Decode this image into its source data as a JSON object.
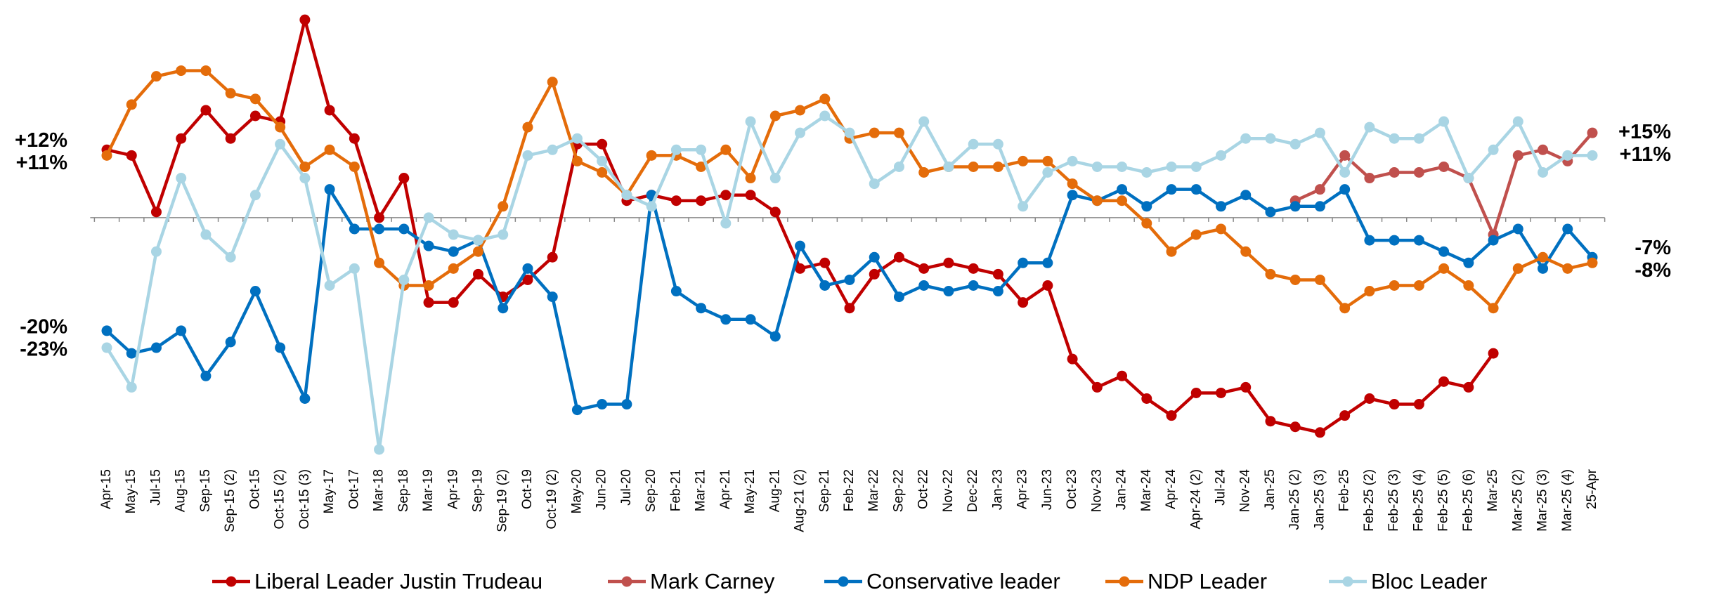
{
  "chart_data": {
    "type": "line",
    "categories": [
      "Apr-15",
      "May-15",
      "Jul-15",
      "Aug-15",
      "Sep-15",
      "Sep-15 (2)",
      "Oct-15",
      "Oct-15 (2)",
      "Oct-15 (3)",
      "May-17",
      "Oct-17",
      "Mar-18",
      "Sep-18",
      "Mar-19",
      "Apr-19",
      "Sep-19",
      "Sep-19 (2)",
      "Oct-19",
      "Oct-19 (2)",
      "May-20",
      "Jun-20",
      "Jul-20",
      "Sep-20",
      "Feb-21",
      "Mar-21",
      "Apr-21",
      "May-21",
      "Aug-21",
      "Aug-21 (2)",
      "Sep-21",
      "Feb-22",
      "Mar-22",
      "Sep-22",
      "Oct-22",
      "Nov-22",
      "Dec-22",
      "Jan-23",
      "Apr-23",
      "Jun-23",
      "Oct-23",
      "Nov-23",
      "Jan-24",
      "Mar-24",
      "Apr-24",
      "Apr-24 (2)",
      "Jul-24",
      "Nov-24",
      "Jan-25",
      "Jan-25 (2)",
      "Jan-25 (3)",
      "Feb-25",
      "Feb-25 (2)",
      "Feb-25 (3)",
      "Feb-25 (4)",
      "Feb-25 (5)",
      "Feb-25 (6)",
      "Mar-25",
      "Mar-25 (2)",
      "Mar-25 (3)",
      "Mar-25 (4)",
      "25-Apr"
    ],
    "ylim": [
      -42,
      38
    ],
    "series": [
      {
        "name": "Liberal Leader Justin Trudeau",
        "color": "#c00000",
        "values": [
          12,
          11,
          1,
          14,
          19,
          14,
          18,
          17,
          35,
          19,
          14,
          0,
          7,
          -15,
          -15,
          -10,
          -14,
          -11,
          -7,
          13,
          13,
          3,
          4,
          3,
          3,
          4,
          4,
          1,
          -9,
          -8,
          -16,
          -10,
          -7,
          -9,
          -8,
          -9,
          -10,
          -15,
          -12,
          -25,
          -30,
          -28,
          -32,
          -35,
          -31,
          -31,
          -30,
          -36,
          -37,
          -38,
          -35,
          -32,
          -33,
          -33,
          -29,
          -30,
          -24,
          null,
          null,
          null,
          null
        ],
        "value_labels": [
          "+12%",
          null,
          null,
          null,
          null,
          null,
          null,
          null,
          null,
          null,
          null,
          null,
          null,
          null,
          null,
          null,
          null,
          null,
          null,
          null,
          null,
          null,
          null,
          null,
          null,
          null,
          null,
          null,
          null,
          null,
          null,
          null,
          null,
          null,
          null,
          null,
          null,
          null,
          null,
          null,
          null,
          null,
          null,
          null,
          null,
          null,
          null,
          null,
          null,
          null,
          null,
          null,
          null,
          null,
          null,
          null,
          null,
          null,
          null,
          null,
          null
        ]
      },
      {
        "name": "Mark Carney",
        "color": "#c0504d",
        "values": [
          null,
          null,
          null,
          null,
          null,
          null,
          null,
          null,
          null,
          null,
          null,
          null,
          null,
          null,
          null,
          null,
          null,
          null,
          null,
          null,
          null,
          null,
          null,
          null,
          null,
          null,
          null,
          null,
          null,
          null,
          null,
          null,
          null,
          null,
          null,
          null,
          null,
          null,
          null,
          null,
          null,
          null,
          null,
          null,
          null,
          null,
          null,
          null,
          3,
          5,
          11,
          7,
          8,
          8,
          9,
          7,
          -3,
          11,
          12,
          10,
          15
        ],
        "value_labels": [
          null,
          null,
          null,
          null,
          null,
          null,
          null,
          null,
          null,
          null,
          null,
          null,
          null,
          null,
          null,
          null,
          null,
          null,
          null,
          null,
          null,
          null,
          null,
          null,
          null,
          null,
          null,
          null,
          null,
          null,
          null,
          null,
          null,
          null,
          null,
          null,
          null,
          null,
          null,
          null,
          null,
          null,
          null,
          null,
          null,
          null,
          null,
          null,
          null,
          null,
          null,
          null,
          null,
          null,
          null,
          null,
          null,
          null,
          null,
          null,
          "+15%"
        ]
      },
      {
        "name": "Conservative leader",
        "color": "#0070c0",
        "values": [
          -20,
          -24,
          -23,
          -20,
          -28,
          -22,
          -13,
          -23,
          -32,
          5,
          -2,
          -2,
          -2,
          -5,
          -6,
          -4,
          -16,
          -9,
          -14,
          -34,
          -33,
          -33,
          4,
          -13,
          -16,
          -18,
          -18,
          -21,
          -5,
          -12,
          -11,
          -7,
          -14,
          -12,
          -13,
          -12,
          -13,
          -8,
          -8,
          4,
          3,
          5,
          2,
          5,
          5,
          2,
          4,
          1,
          2,
          2,
          5,
          -4,
          -4,
          -4,
          -6,
          -8,
          -4,
          -2,
          -9,
          -2,
          -7
        ],
        "value_labels": [
          "-20%",
          null,
          null,
          null,
          null,
          null,
          null,
          null,
          null,
          null,
          null,
          null,
          null,
          null,
          null,
          null,
          null,
          null,
          null,
          null,
          null,
          null,
          null,
          null,
          null,
          null,
          null,
          null,
          null,
          null,
          null,
          null,
          null,
          null,
          null,
          null,
          null,
          null,
          null,
          null,
          null,
          null,
          null,
          null,
          null,
          null,
          null,
          null,
          null,
          null,
          null,
          null,
          null,
          null,
          null,
          null,
          null,
          null,
          null,
          null,
          "-7%"
        ]
      },
      {
        "name": "NDP Leader",
        "color": "#e46c0a",
        "values": [
          11,
          20,
          25,
          26,
          26,
          22,
          21,
          16,
          9,
          12,
          9,
          -8,
          -12,
          -12,
          -9,
          -6,
          2,
          16,
          24,
          10,
          8,
          4,
          11,
          11,
          9,
          12,
          7,
          18,
          19,
          21,
          14,
          15,
          15,
          8,
          9,
          9,
          9,
          10,
          10,
          6,
          3,
          3,
          -1,
          -6,
          -3,
          -2,
          -6,
          -10,
          -11,
          -11,
          -16,
          -13,
          -12,
          -12,
          -9,
          -12,
          -16,
          -9,
          -7,
          -9,
          -8
        ],
        "value_labels": [
          "+11%",
          null,
          null,
          null,
          null,
          null,
          null,
          null,
          null,
          null,
          null,
          null,
          null,
          null,
          null,
          null,
          null,
          null,
          null,
          null,
          null,
          null,
          null,
          null,
          null,
          null,
          null,
          null,
          null,
          null,
          null,
          null,
          null,
          null,
          null,
          null,
          null,
          null,
          null,
          null,
          null,
          null,
          null,
          null,
          null,
          null,
          null,
          null,
          null,
          null,
          null,
          null,
          null,
          null,
          null,
          null,
          null,
          null,
          null,
          null,
          "-8%"
        ]
      },
      {
        "name": "Bloc Leader",
        "color": "#a9d5e4",
        "values": [
          -23,
          -30,
          -6,
          7,
          -3,
          -7,
          4,
          13,
          7,
          -12,
          -9,
          -41,
          -11,
          0,
          -3,
          -4,
          -3,
          11,
          12,
          14,
          10,
          4,
          2,
          12,
          12,
          -1,
          17,
          7,
          15,
          18,
          15,
          6,
          9,
          17,
          9,
          13,
          13,
          2,
          8,
          10,
          9,
          9,
          8,
          9,
          9,
          11,
          14,
          14,
          13,
          15,
          8,
          16,
          14,
          14,
          17,
          7,
          12,
          17,
          8,
          11,
          11
        ],
        "value_labels": [
          "-23%",
          null,
          null,
          null,
          null,
          null,
          null,
          null,
          null,
          null,
          null,
          null,
          null,
          null,
          null,
          null,
          null,
          null,
          null,
          null,
          null,
          null,
          null,
          null,
          null,
          null,
          null,
          null,
          null,
          null,
          null,
          null,
          null,
          null,
          null,
          null,
          null,
          null,
          null,
          null,
          null,
          null,
          null,
          null,
          null,
          null,
          null,
          null,
          null,
          null,
          null,
          null,
          null,
          null,
          null,
          null,
          null,
          null,
          null,
          null,
          "+11%"
        ]
      }
    ]
  }
}
